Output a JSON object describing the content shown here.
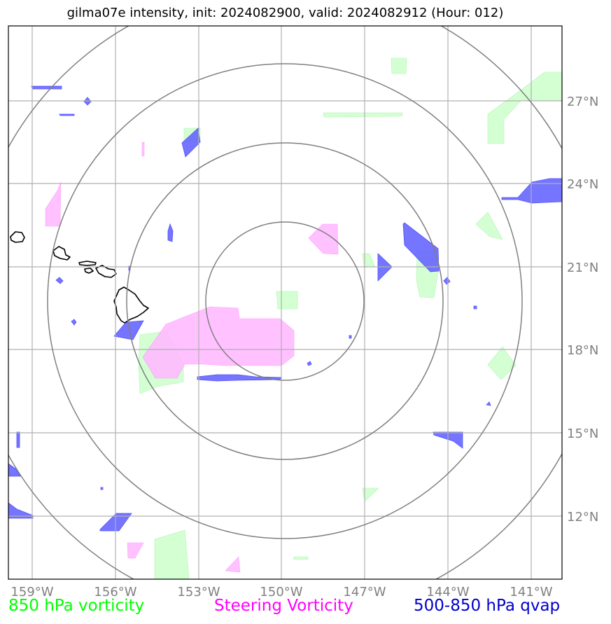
{
  "title": "gilma07e intensity, init: 2024082900, valid: 2024082912 (Hour: 012)",
  "lon_ticks": [
    "159°W",
    "156°W",
    "153°W",
    "150°W",
    "147°W",
    "144°W",
    "141°W"
  ],
  "lat_ticks": [
    "27°N",
    "24°N",
    "21°N",
    "18°N",
    "15°N",
    "12°N"
  ],
  "legend": [
    {
      "label": "850 hPa vorticity",
      "color": "#00ff00"
    },
    {
      "label": "Steering Vorticity",
      "color": "#ff00ff"
    },
    {
      "label": "500-850 hPa qvap",
      "color": "#0000cd"
    }
  ],
  "colors": {
    "gridline": "#b0b0b0",
    "range_ring": "#808080",
    "vorticity_850_fill": "#ccffcc",
    "steering_vorticity_fill": "#ffaaff",
    "qvap_fill": "#5555ff",
    "coastline": "#000000"
  }
}
